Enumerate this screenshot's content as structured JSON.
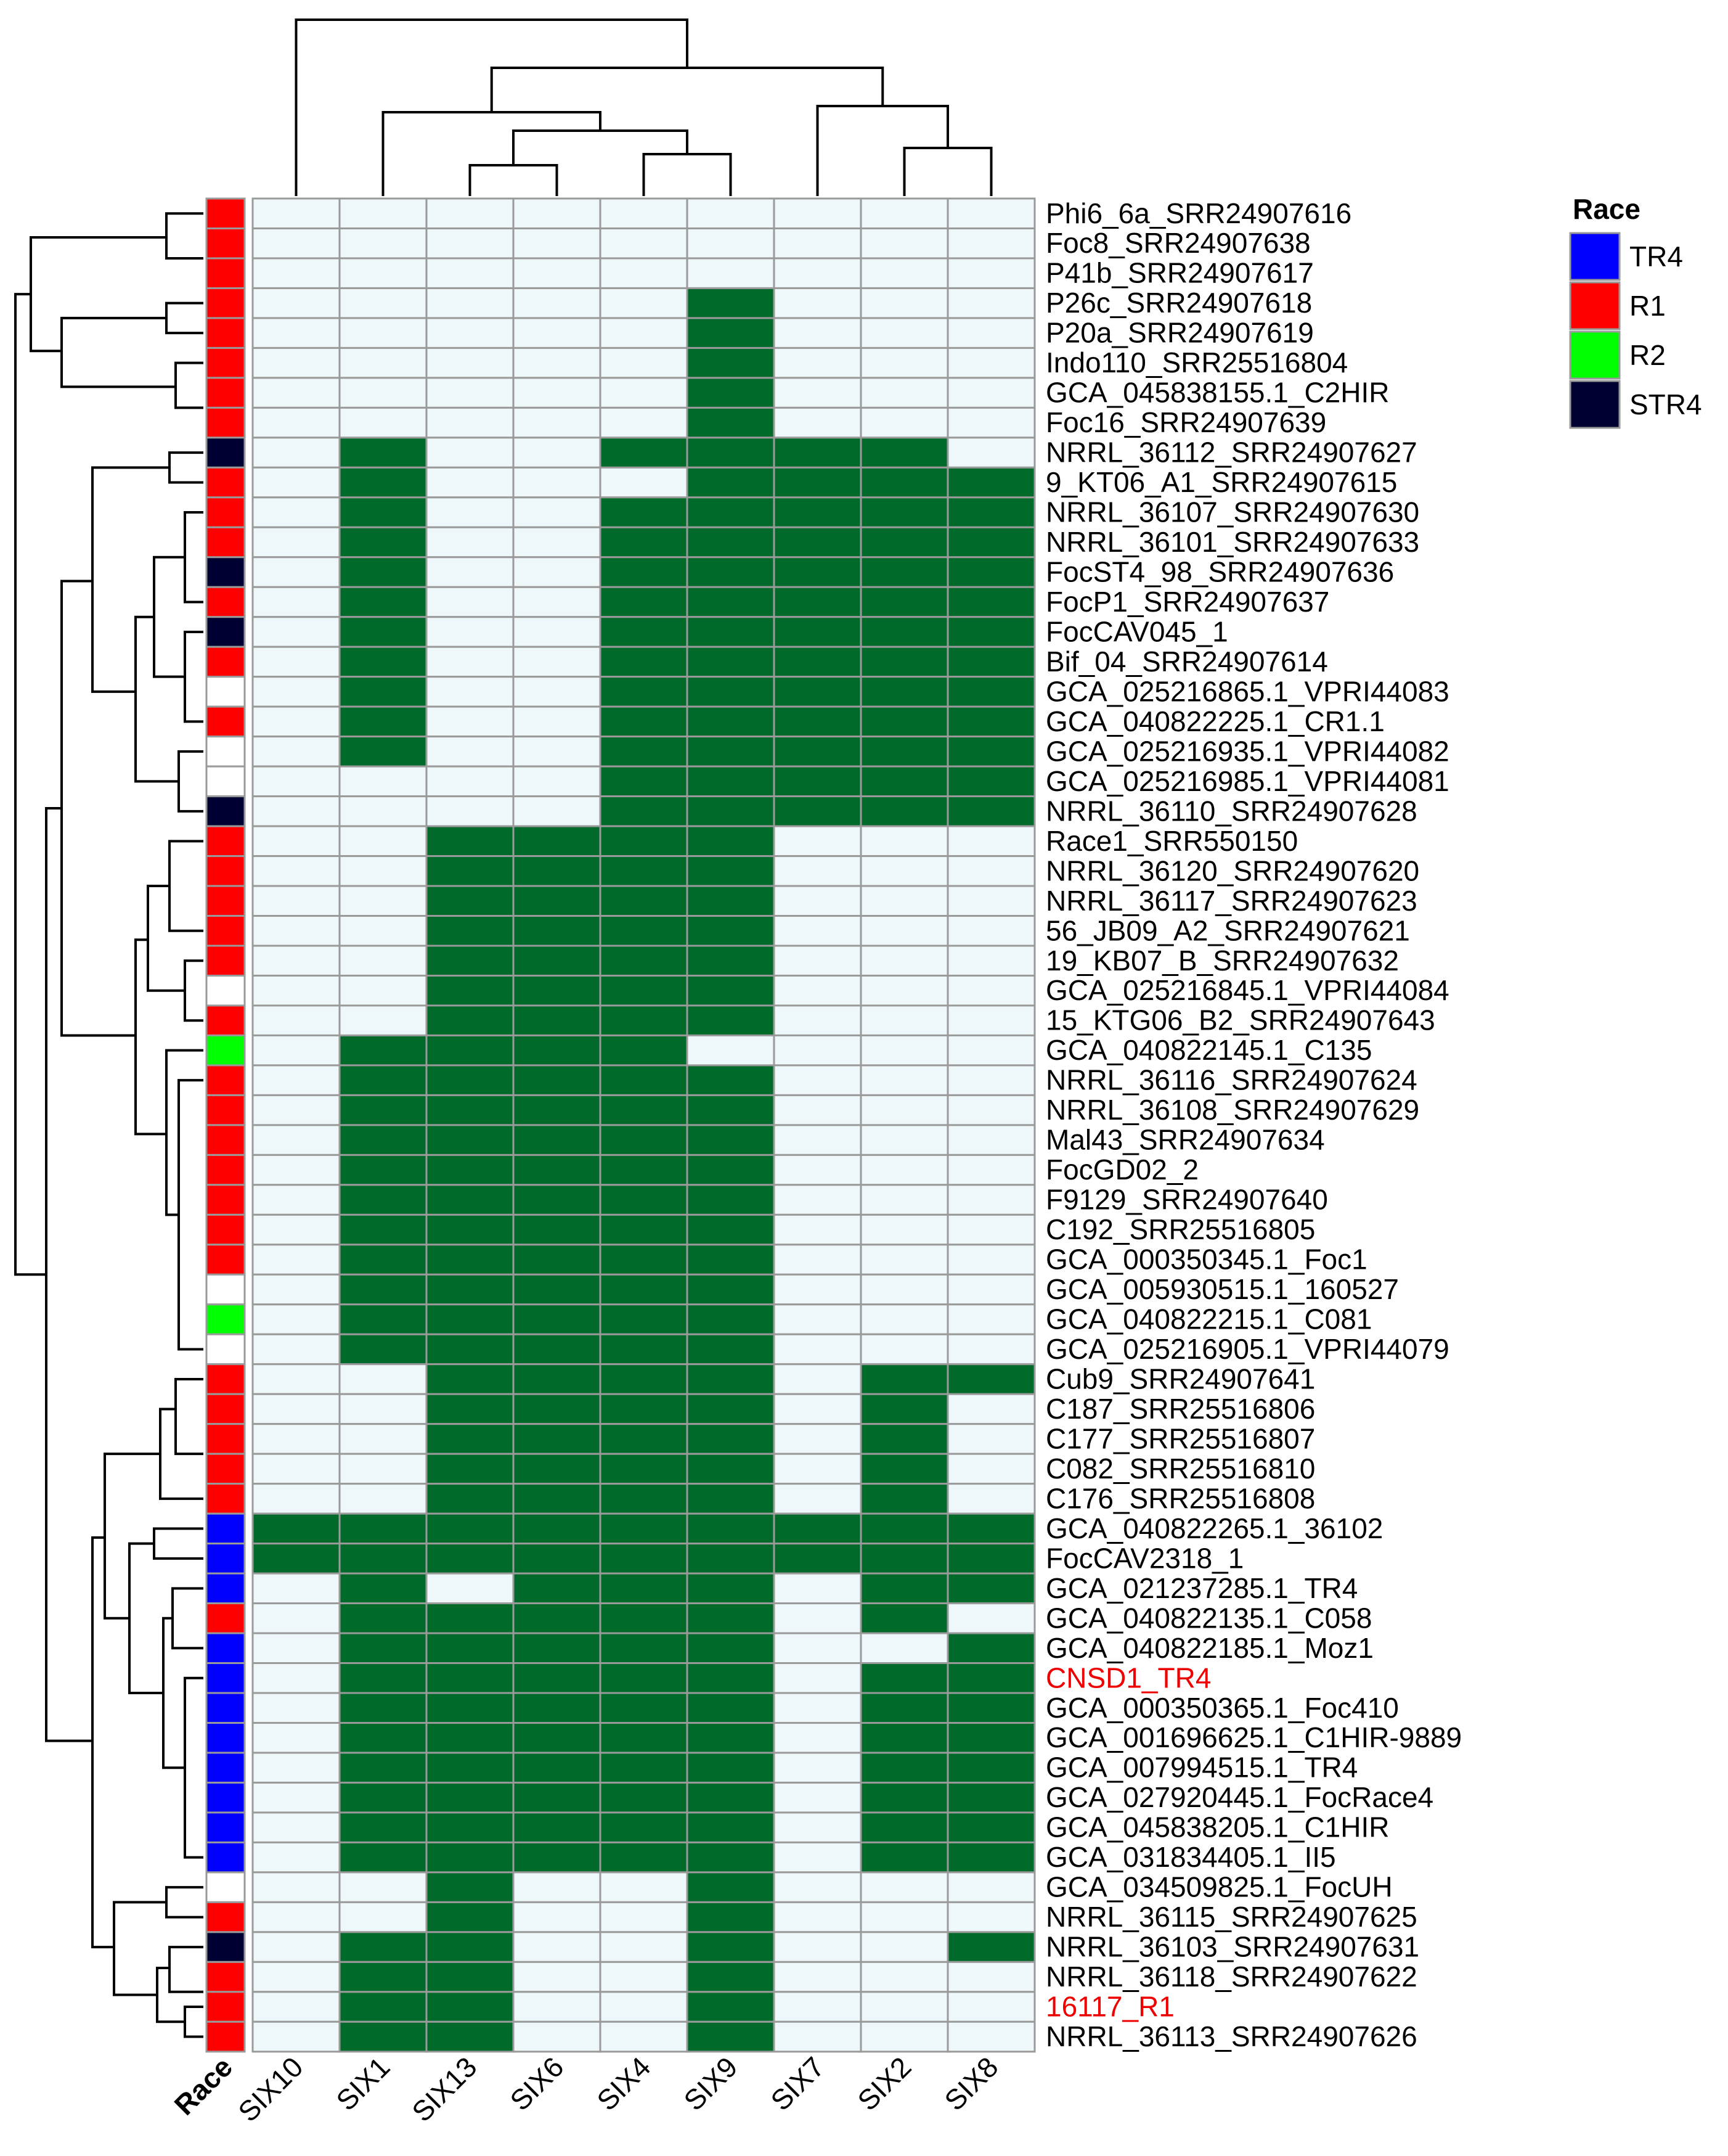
{
  "chart_data": {
    "type": "heatmap",
    "columns": [
      "SIX10",
      "SIX1",
      "SIX13",
      "SIX6",
      "SIX4",
      "SIX9",
      "SIX7",
      "SIX2",
      "SIX8"
    ],
    "annotation_column_label": "Race",
    "legend": {
      "title": "Race",
      "placement": "top-right",
      "entries": [
        {
          "label": "TR4",
          "color": "#0000ff"
        },
        {
          "label": "R1",
          "color": "#ff0000"
        },
        {
          "label": "R2",
          "color": "#00ff00"
        },
        {
          "label": "STR4",
          "color": "#000033"
        }
      ]
    },
    "colors": {
      "present": "#006a2a",
      "absent": "#eef7f9",
      "grid": "#9a9a9a",
      "highlight_label": "#ee0000",
      "dendrogram": "#000000"
    },
    "rows": [
      {
        "label": "Phi6_6a_SRR24907616",
        "race": "R1",
        "values": [
          0,
          0,
          0,
          0,
          0,
          0,
          0,
          0,
          0
        ]
      },
      {
        "label": "Foc8_SRR24907638",
        "race": "R1",
        "values": [
          0,
          0,
          0,
          0,
          0,
          0,
          0,
          0,
          0
        ]
      },
      {
        "label": "P41b_SRR24907617",
        "race": "R1",
        "values": [
          0,
          0,
          0,
          0,
          0,
          0,
          0,
          0,
          0
        ]
      },
      {
        "label": "P26c_SRR24907618",
        "race": "R1",
        "values": [
          0,
          0,
          0,
          0,
          0,
          1,
          0,
          0,
          0
        ]
      },
      {
        "label": "P20a_SRR24907619",
        "race": "R1",
        "values": [
          0,
          0,
          0,
          0,
          0,
          1,
          0,
          0,
          0
        ]
      },
      {
        "label": "Indo110_SRR25516804",
        "race": "R1",
        "values": [
          0,
          0,
          0,
          0,
          0,
          1,
          0,
          0,
          0
        ]
      },
      {
        "label": "GCA_045838155.1_C2HIR",
        "race": "R1",
        "values": [
          0,
          0,
          0,
          0,
          0,
          1,
          0,
          0,
          0
        ]
      },
      {
        "label": "Foc16_SRR24907639",
        "race": "R1",
        "values": [
          0,
          0,
          0,
          0,
          0,
          1,
          0,
          0,
          0
        ]
      },
      {
        "label": "NRRL_36112_SRR24907627",
        "race": "STR4",
        "values": [
          0,
          1,
          0,
          0,
          1,
          1,
          1,
          1,
          0
        ]
      },
      {
        "label": "9_KT06_A1_SRR24907615",
        "race": "R1",
        "values": [
          0,
          1,
          0,
          0,
          0,
          1,
          1,
          1,
          1
        ]
      },
      {
        "label": "NRRL_36107_SRR24907630",
        "race": "R1",
        "values": [
          0,
          1,
          0,
          0,
          1,
          1,
          1,
          1,
          1
        ]
      },
      {
        "label": "NRRL_36101_SRR24907633",
        "race": "R1",
        "values": [
          0,
          1,
          0,
          0,
          1,
          1,
          1,
          1,
          1
        ]
      },
      {
        "label": "FocST4_98_SRR24907636",
        "race": "STR4",
        "values": [
          0,
          1,
          0,
          0,
          1,
          1,
          1,
          1,
          1
        ]
      },
      {
        "label": "FocP1_SRR24907637",
        "race": "R1",
        "values": [
          0,
          1,
          0,
          0,
          1,
          1,
          1,
          1,
          1
        ]
      },
      {
        "label": "FocCAV045_1",
        "race": "STR4",
        "values": [
          0,
          1,
          0,
          0,
          1,
          1,
          1,
          1,
          1
        ]
      },
      {
        "label": "Bif_04_SRR24907614",
        "race": "R1",
        "values": [
          0,
          1,
          0,
          0,
          1,
          1,
          1,
          1,
          1
        ]
      },
      {
        "label": "GCA_025216865.1_VPRI44083",
        "race": "",
        "values": [
          0,
          1,
          0,
          0,
          1,
          1,
          1,
          1,
          1
        ]
      },
      {
        "label": "GCA_040822225.1_CR1.1",
        "race": "R1",
        "values": [
          0,
          1,
          0,
          0,
          1,
          1,
          1,
          1,
          1
        ]
      },
      {
        "label": "GCA_025216935.1_VPRI44082",
        "race": "",
        "values": [
          0,
          1,
          0,
          0,
          1,
          1,
          1,
          1,
          1
        ]
      },
      {
        "label": "GCA_025216985.1_VPRI44081",
        "race": "",
        "values": [
          0,
          0,
          0,
          0,
          1,
          1,
          1,
          1,
          1
        ]
      },
      {
        "label": "NRRL_36110_SRR24907628",
        "race": "STR4",
        "values": [
          0,
          0,
          0,
          0,
          1,
          1,
          1,
          1,
          1
        ]
      },
      {
        "label": "Race1_SRR550150",
        "race": "R1",
        "values": [
          0,
          0,
          1,
          1,
          1,
          1,
          0,
          0,
          0
        ]
      },
      {
        "label": "NRRL_36120_SRR24907620",
        "race": "R1",
        "values": [
          0,
          0,
          1,
          1,
          1,
          1,
          0,
          0,
          0
        ]
      },
      {
        "label": "NRRL_36117_SRR24907623",
        "race": "R1",
        "values": [
          0,
          0,
          1,
          1,
          1,
          1,
          0,
          0,
          0
        ]
      },
      {
        "label": "56_JB09_A2_SRR24907621",
        "race": "R1",
        "values": [
          0,
          0,
          1,
          1,
          1,
          1,
          0,
          0,
          0
        ]
      },
      {
        "label": "19_KB07_B_SRR24907632",
        "race": "R1",
        "values": [
          0,
          0,
          1,
          1,
          1,
          1,
          0,
          0,
          0
        ]
      },
      {
        "label": "GCA_025216845.1_VPRI44084",
        "race": "",
        "values": [
          0,
          0,
          1,
          1,
          1,
          1,
          0,
          0,
          0
        ]
      },
      {
        "label": "15_KTG06_B2_SRR24907643",
        "race": "R1",
        "values": [
          0,
          0,
          1,
          1,
          1,
          1,
          0,
          0,
          0
        ]
      },
      {
        "label": "GCA_040822145.1_C135",
        "race": "R2",
        "values": [
          0,
          1,
          1,
          1,
          1,
          0,
          0,
          0,
          0
        ]
      },
      {
        "label": "NRRL_36116_SRR24907624",
        "race": "R1",
        "values": [
          0,
          1,
          1,
          1,
          1,
          1,
          0,
          0,
          0
        ]
      },
      {
        "label": "NRRL_36108_SRR24907629",
        "race": "R1",
        "values": [
          0,
          1,
          1,
          1,
          1,
          1,
          0,
          0,
          0
        ]
      },
      {
        "label": "Mal43_SRR24907634",
        "race": "R1",
        "values": [
          0,
          1,
          1,
          1,
          1,
          1,
          0,
          0,
          0
        ]
      },
      {
        "label": "FocGD02_2",
        "race": "R1",
        "values": [
          0,
          1,
          1,
          1,
          1,
          1,
          0,
          0,
          0
        ]
      },
      {
        "label": "F9129_SRR24907640",
        "race": "R1",
        "values": [
          0,
          1,
          1,
          1,
          1,
          1,
          0,
          0,
          0
        ]
      },
      {
        "label": "C192_SRR25516805",
        "race": "R1",
        "values": [
          0,
          1,
          1,
          1,
          1,
          1,
          0,
          0,
          0
        ]
      },
      {
        "label": "GCA_000350345.1_Foc1",
        "race": "R1",
        "values": [
          0,
          1,
          1,
          1,
          1,
          1,
          0,
          0,
          0
        ]
      },
      {
        "label": "GCA_005930515.1_160527",
        "race": "",
        "values": [
          0,
          1,
          1,
          1,
          1,
          1,
          0,
          0,
          0
        ]
      },
      {
        "label": "GCA_040822215.1_C081",
        "race": "R2",
        "values": [
          0,
          1,
          1,
          1,
          1,
          1,
          0,
          0,
          0
        ]
      },
      {
        "label": "GCA_025216905.1_VPRI44079",
        "race": "",
        "values": [
          0,
          1,
          1,
          1,
          1,
          1,
          0,
          0,
          0
        ]
      },
      {
        "label": "Cub9_SRR24907641",
        "race": "R1",
        "values": [
          0,
          0,
          1,
          1,
          1,
          1,
          0,
          1,
          1
        ]
      },
      {
        "label": "C187_SRR25516806",
        "race": "R1",
        "values": [
          0,
          0,
          1,
          1,
          1,
          1,
          0,
          1,
          0
        ]
      },
      {
        "label": "C177_SRR25516807",
        "race": "R1",
        "values": [
          0,
          0,
          1,
          1,
          1,
          1,
          0,
          1,
          0
        ]
      },
      {
        "label": "C082_SRR25516810",
        "race": "R1",
        "values": [
          0,
          0,
          1,
          1,
          1,
          1,
          0,
          1,
          0
        ]
      },
      {
        "label": "C176_SRR25516808",
        "race": "R1",
        "values": [
          0,
          0,
          1,
          1,
          1,
          1,
          0,
          1,
          0
        ]
      },
      {
        "label": "GCA_040822265.1_36102",
        "race": "TR4",
        "values": [
          1,
          1,
          1,
          1,
          1,
          1,
          1,
          1,
          1
        ]
      },
      {
        "label": "FocCAV2318_1",
        "race": "TR4",
        "values": [
          1,
          1,
          1,
          1,
          1,
          1,
          1,
          1,
          1
        ]
      },
      {
        "label": "GCA_021237285.1_TR4",
        "race": "TR4",
        "values": [
          0,
          1,
          0,
          1,
          1,
          1,
          0,
          1,
          1
        ]
      },
      {
        "label": "GCA_040822135.1_C058",
        "race": "R1",
        "values": [
          0,
          1,
          1,
          1,
          1,
          1,
          0,
          1,
          0
        ]
      },
      {
        "label": "GCA_040822185.1_Moz1",
        "race": "TR4",
        "values": [
          0,
          1,
          1,
          1,
          1,
          1,
          0,
          0,
          1
        ]
      },
      {
        "label": "CNSD1_TR4",
        "race": "TR4",
        "highlight": true,
        "values": [
          0,
          1,
          1,
          1,
          1,
          1,
          0,
          1,
          1
        ]
      },
      {
        "label": "GCA_000350365.1_Foc410",
        "race": "TR4",
        "values": [
          0,
          1,
          1,
          1,
          1,
          1,
          0,
          1,
          1
        ]
      },
      {
        "label": "GCA_001696625.1_C1HIR-9889",
        "race": "TR4",
        "values": [
          0,
          1,
          1,
          1,
          1,
          1,
          0,
          1,
          1
        ]
      },
      {
        "label": "GCA_007994515.1_TR4",
        "race": "TR4",
        "values": [
          0,
          1,
          1,
          1,
          1,
          1,
          0,
          1,
          1
        ]
      },
      {
        "label": "GCA_027920445.1_FocRace4",
        "race": "TR4",
        "values": [
          0,
          1,
          1,
          1,
          1,
          1,
          0,
          1,
          1
        ]
      },
      {
        "label": "GCA_045838205.1_C1HIR",
        "race": "TR4",
        "values": [
          0,
          1,
          1,
          1,
          1,
          1,
          0,
          1,
          1
        ]
      },
      {
        "label": "GCA_031834405.1_II5",
        "race": "TR4",
        "values": [
          0,
          1,
          1,
          1,
          1,
          1,
          0,
          1,
          1
        ]
      },
      {
        "label": "GCA_034509825.1_FocUH",
        "race": "",
        "values": [
          0,
          0,
          1,
          0,
          0,
          1,
          0,
          0,
          0
        ]
      },
      {
        "label": "NRRL_36115_SRR24907625",
        "race": "R1",
        "values": [
          0,
          0,
          1,
          0,
          0,
          1,
          0,
          0,
          0
        ]
      },
      {
        "label": "NRRL_36103_SRR24907631",
        "race": "STR4",
        "values": [
          0,
          1,
          1,
          0,
          0,
          1,
          0,
          0,
          1
        ]
      },
      {
        "label": "NRRL_36118_SRR24907622",
        "race": "R1",
        "values": [
          0,
          1,
          1,
          0,
          0,
          1,
          0,
          0,
          0
        ]
      },
      {
        "label": "16117_R1",
        "race": "R1",
        "highlight": true,
        "values": [
          0,
          1,
          1,
          0,
          0,
          1,
          0,
          0,
          0
        ]
      },
      {
        "label": "NRRL_36113_SRR24907626",
        "race": "R1",
        "values": [
          0,
          1,
          1,
          0,
          0,
          1,
          0,
          0,
          0
        ]
      }
    ]
  }
}
